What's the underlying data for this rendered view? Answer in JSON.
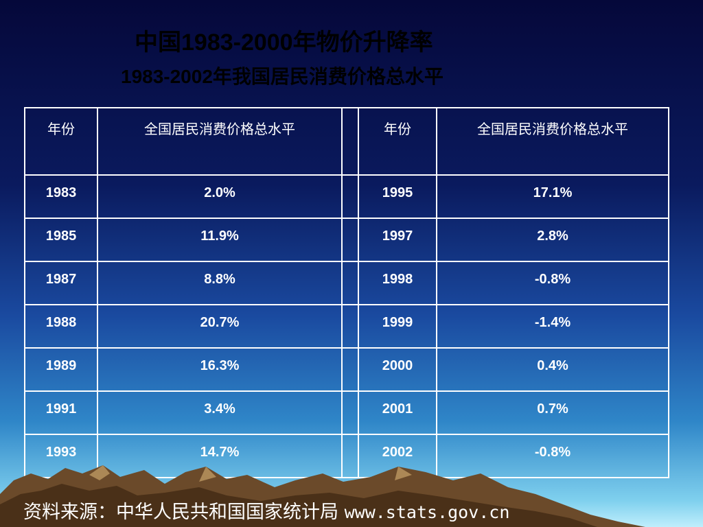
{
  "title": "中国1983-2000年物价升降率",
  "subtitle": "1983-2002年我国居民消费价格总水平",
  "chart_data": {
    "type": "table",
    "columns": [
      "年份",
      "全国居民消费价格总水平",
      "年份",
      "全国居民消费价格总水平"
    ],
    "rows": [
      [
        "1983",
        "2.0%",
        "1995",
        "17.1%"
      ],
      [
        "1985",
        "11.9%",
        "1997",
        "2.8%"
      ],
      [
        "1987",
        "8.8%",
        "1998",
        "-0.8%"
      ],
      [
        "1988",
        "20.7%",
        "1999",
        "-1.4%"
      ],
      [
        "1989",
        "16.3%",
        "2000",
        "0.4%"
      ],
      [
        "1991",
        "3.4%",
        "2001",
        "0.7%"
      ],
      [
        "1993",
        "14.7%",
        "2002",
        "-0.8%"
      ]
    ]
  },
  "source": {
    "label": "资料来源：中华人民共和国国家统计局",
    "url": "www.stats.gov.cn"
  }
}
